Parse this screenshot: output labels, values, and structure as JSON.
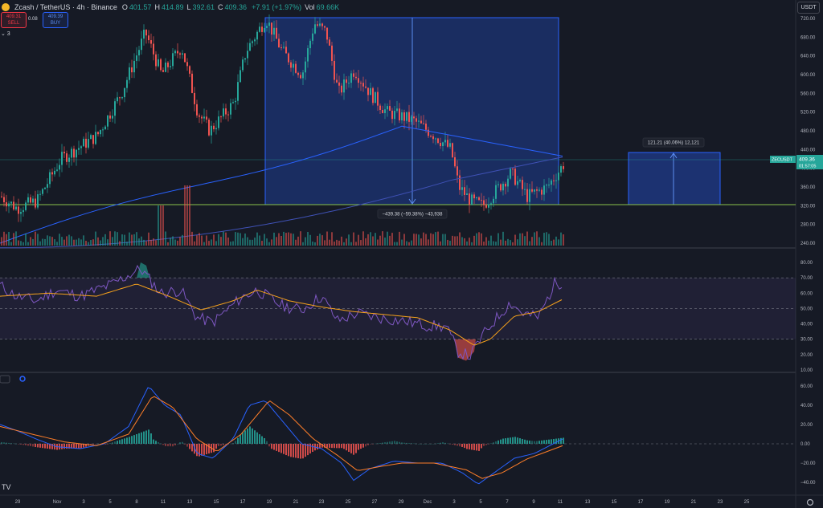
{
  "header": {
    "symbol": "Zcash / TetherUS · 4h · Binance",
    "ohlc": [
      {
        "k": "O",
        "v": "401.57"
      },
      {
        "k": "H",
        "v": "414.89"
      },
      {
        "k": "L",
        "v": "392.61"
      },
      {
        "k": "C",
        "v": "409.36"
      },
      {
        "k": "",
        "v": "+7.91 (+1.97%)"
      },
      {
        "k": "Vol",
        "v": "69.66K"
      }
    ],
    "sell_price": "409.31",
    "sell_label": "SELL",
    "spread": "0.08",
    "buy_price": "409.39",
    "buy_label": "BUY",
    "indicators_toggle": "⌄ 3",
    "currency_button": "USDT"
  },
  "price_axis": [
    "720.00",
    "680.00",
    "640.00",
    "600.00",
    "560.00",
    "520.00",
    "480.00",
    "440.00",
    "400.00",
    "360.00",
    "320.00",
    "280.00",
    "240.00"
  ],
  "price_tag": {
    "symbol": "ZECUSDT",
    "price": "409.36",
    "countdown": "01:57:05"
  },
  "measure_down": {
    "label": "−439.38 (−59.38%) −43,938"
  },
  "measure_up": {
    "label": "121.21 (40.06%) 12,121"
  },
  "rsi_axis": [
    "80.00",
    "70.00",
    "60.00",
    "50.00",
    "40.00",
    "30.00",
    "20.00",
    "10.00"
  ],
  "macd_axis": [
    "60.00",
    "40.00",
    "20.00",
    "0.00",
    "−20.00",
    "−40.00"
  ],
  "x_axis": [
    "29",
    "Nov",
    "3",
    "5",
    "8",
    "11",
    "13",
    "15",
    "17",
    "19",
    "21",
    "23",
    "25",
    "27",
    "29",
    "Dec",
    "3",
    "5",
    "7",
    "9",
    "11",
    "13",
    "15",
    "17",
    "19",
    "21",
    "23",
    "25"
  ],
  "colors": {
    "up": "#26a69a",
    "down": "#ef5350",
    "box": "#2962ff",
    "rsi": "#7e57c2",
    "signal": "#f7a21b",
    "macd": "#2962ff",
    "bg": "#161a25"
  },
  "icons": {
    "tv_logo": "tradingview-logo",
    "settings": "gear-icon"
  }
}
